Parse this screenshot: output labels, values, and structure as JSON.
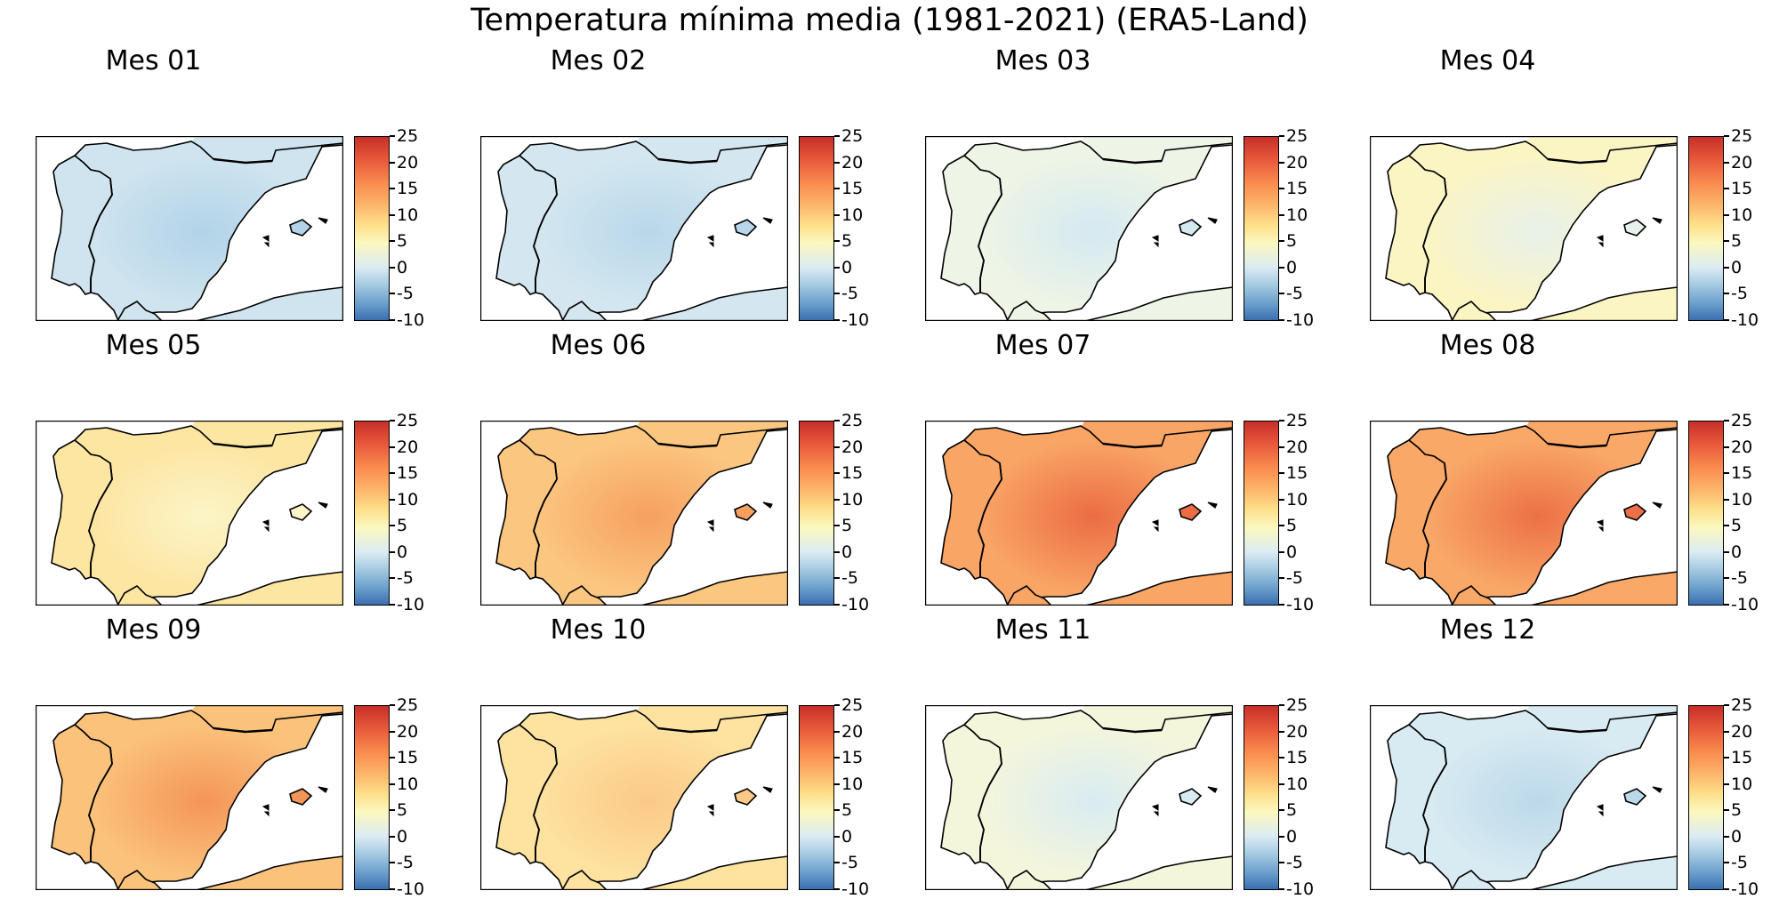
{
  "title": "Temperatura mínima media (1981-2021) (ERA5-Land)",
  "colorbar_ticks": [
    "25",
    "20",
    "15",
    "10",
    "5",
    "0",
    "-5",
    "-10"
  ],
  "colormap": {
    "name": "RdYlBu_r",
    "range": [
      -10,
      25
    ],
    "low": "#3a6fb0",
    "mid": "#fbf8c0",
    "high": "#c62f28"
  },
  "panels": [
    {
      "title": "Mes 01",
      "fill": "#cfe4ef",
      "accent": "#b2d3e8"
    },
    {
      "title": "Mes 02",
      "fill": "#d4e7f0",
      "accent": "#b9d7ea"
    },
    {
      "title": "Mes 03",
      "fill": "#eef4e6",
      "accent": "#d5e9f1"
    },
    {
      "title": "Mes 04",
      "fill": "#fbf5c4",
      "accent": "#e8f1ea"
    },
    {
      "title": "Mes 05",
      "fill": "#fde5a2",
      "accent": "#fbf5c8"
    },
    {
      "title": "Mes 06",
      "fill": "#fbc680",
      "accent": "#f6a060"
    },
    {
      "title": "Mes 07",
      "fill": "#f9a566",
      "accent": "#eb6c44"
    },
    {
      "title": "Mes 08",
      "fill": "#f9a868",
      "accent": "#ec7046"
    },
    {
      "title": "Mes 09",
      "fill": "#fbc27c",
      "accent": "#f49558"
    },
    {
      "title": "Mes 10",
      "fill": "#fde2a0",
      "accent": "#fcc987"
    },
    {
      "title": "Mes 11",
      "fill": "#f4f6dc",
      "accent": "#d9ebf2"
    },
    {
      "title": "Mes 12",
      "fill": "#d9ebf2",
      "accent": "#bcd9ea"
    }
  ]
}
